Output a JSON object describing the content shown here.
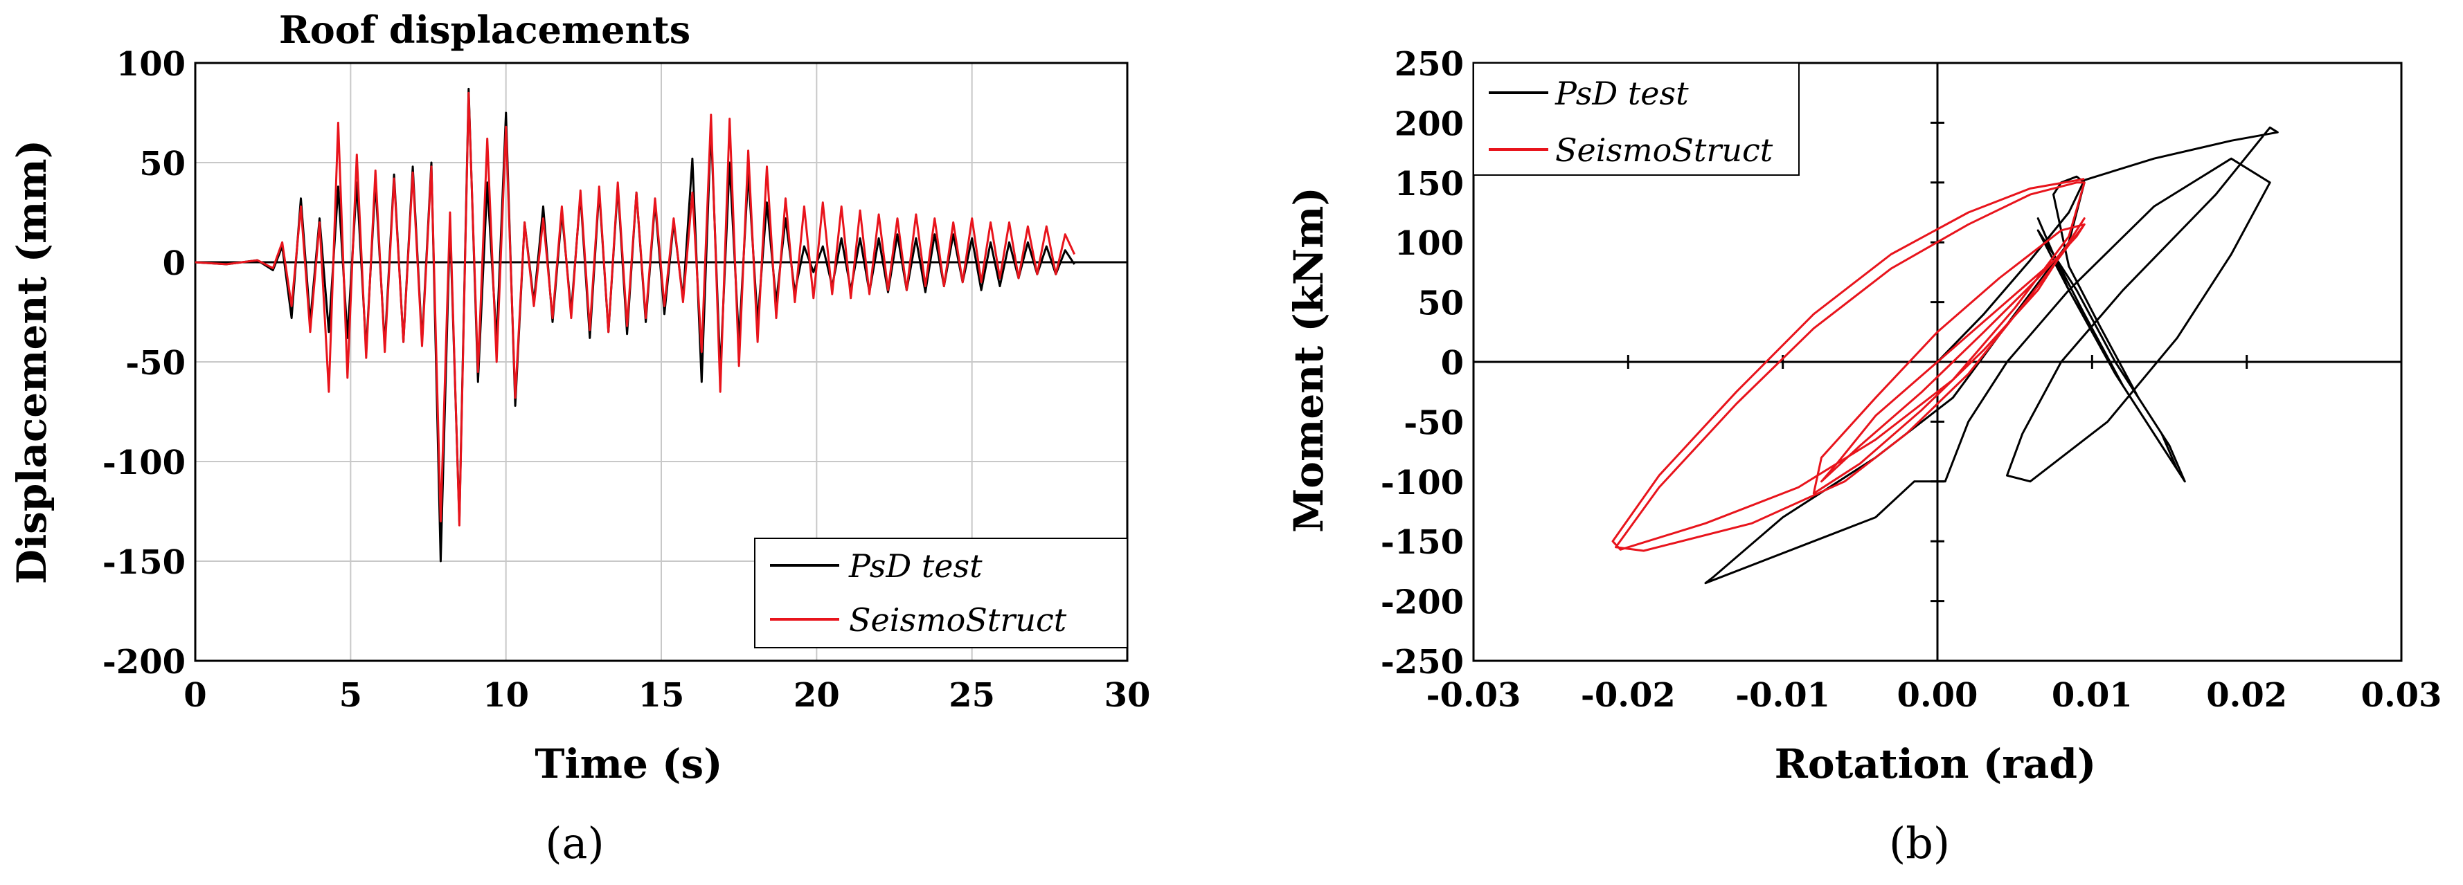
{
  "chart_data": [
    {
      "type": "line",
      "panel_label": "(a)",
      "title": "Roof displacements",
      "xlabel": "Time (s)",
      "ylabel": "Displacement (mm)",
      "xlim": [
        0,
        30
      ],
      "ylim": [
        -200,
        100
      ],
      "x_ticks": [
        "0",
        "5",
        "10",
        "15",
        "20",
        "25",
        "30"
      ],
      "y_ticks": [
        "100",
        "50",
        "0",
        "-50",
        "-100",
        "-150",
        "-200"
      ],
      "grid": true,
      "legend_position": "bottom-right",
      "colors": {
        "PsD test": "#000000",
        "SeismoStruct": "#e8141c"
      },
      "series": [
        {
          "name": "PsD test",
          "x": [
            0,
            1,
            2,
            2.5,
            2.8,
            3.1,
            3.4,
            3.7,
            4.0,
            4.3,
            4.6,
            4.9,
            5.2,
            5.5,
            5.8,
            6.1,
            6.4,
            6.7,
            7.0,
            7.3,
            7.6,
            7.9,
            8.2,
            8.5,
            8.8,
            9.1,
            9.4,
            9.7,
            10.0,
            10.3,
            10.6,
            10.9,
            11.2,
            11.5,
            11.8,
            12.1,
            12.4,
            12.7,
            13.0,
            13.3,
            13.6,
            13.9,
            14.2,
            14.5,
            14.8,
            15.1,
            15.4,
            15.7,
            16.0,
            16.3,
            16.6,
            16.9,
            17.2,
            17.5,
            17.8,
            18.1,
            18.4,
            18.7,
            19.0,
            19.3,
            19.6,
            19.9,
            20.2,
            20.5,
            20.8,
            21.1,
            21.4,
            21.7,
            22.0,
            22.3,
            22.6,
            22.9,
            23.2,
            23.5,
            23.8,
            24.1,
            24.4,
            24.7,
            25.0,
            25.3,
            25.6,
            25.9,
            26.2,
            26.5,
            26.8,
            27.1,
            27.4,
            27.7,
            28.0,
            28.3
          ],
          "values": [
            0,
            -1,
            1,
            -4,
            8,
            -28,
            32,
            -30,
            22,
            -35,
            38,
            -38,
            40,
            -44,
            40,
            -42,
            44,
            -40,
            48,
            -40,
            50,
            -150,
            20,
            -130,
            87,
            -60,
            40,
            -40,
            75,
            -72,
            20,
            -20,
            28,
            -30,
            25,
            -25,
            34,
            -38,
            36,
            -35,
            38,
            -36,
            35,
            -30,
            30,
            -26,
            20,
            -18,
            52,
            -60,
            68,
            -55,
            50,
            -40,
            45,
            -30,
            30,
            -20,
            22,
            -15,
            8,
            -5,
            8,
            -12,
            12,
            -14,
            12,
            -15,
            12,
            -15,
            14,
            -14,
            12,
            -15,
            14,
            -12,
            14,
            -10,
            12,
            -14,
            10,
            -12,
            10,
            -8,
            10,
            -6,
            8,
            -6,
            6,
            -1
          ]
        },
        {
          "name": "SeismoStruct",
          "x": [
            0,
            1,
            2,
            2.5,
            2.8,
            3.1,
            3.4,
            3.7,
            4.0,
            4.3,
            4.6,
            4.9,
            5.2,
            5.5,
            5.8,
            6.1,
            6.4,
            6.7,
            7.0,
            7.3,
            7.6,
            7.9,
            8.2,
            8.5,
            8.8,
            9.1,
            9.4,
            9.7,
            10.0,
            10.3,
            10.6,
            10.9,
            11.2,
            11.5,
            11.8,
            12.1,
            12.4,
            12.7,
            13.0,
            13.3,
            13.6,
            13.9,
            14.2,
            14.5,
            14.8,
            15.1,
            15.4,
            15.7,
            16.0,
            16.3,
            16.6,
            16.9,
            17.2,
            17.5,
            17.8,
            18.1,
            18.4,
            18.7,
            19.0,
            19.3,
            19.6,
            19.9,
            20.2,
            20.5,
            20.8,
            21.1,
            21.4,
            21.7,
            22.0,
            22.3,
            22.6,
            22.9,
            23.2,
            23.5,
            23.8,
            24.1,
            24.4,
            24.7,
            25.0,
            25.3,
            25.6,
            25.9,
            26.2,
            26.5,
            26.8,
            27.1,
            27.4,
            27.7,
            28.0,
            28.3
          ],
          "values": [
            0,
            -1,
            1,
            -3,
            10,
            -22,
            28,
            -35,
            20,
            -65,
            70,
            -58,
            54,
            -48,
            46,
            -45,
            42,
            -40,
            45,
            -42,
            48,
            -130,
            25,
            -132,
            85,
            -55,
            62,
            -50,
            68,
            -68,
            20,
            -22,
            22,
            -28,
            28,
            -28,
            36,
            -34,
            38,
            -35,
            40,
            -32,
            35,
            -28,
            32,
            -22,
            22,
            -20,
            35,
            -45,
            74,
            -65,
            72,
            -52,
            56,
            -40,
            48,
            -28,
            32,
            -20,
            28,
            -18,
            30,
            -16,
            28,
            -18,
            26,
            -16,
            24,
            -14,
            22,
            -14,
            24,
            -12,
            22,
            -12,
            20,
            -10,
            22,
            -10,
            20,
            -8,
            20,
            -8,
            18,
            -6,
            18,
            -6,
            14,
            4
          ]
        }
      ]
    },
    {
      "type": "line",
      "panel_label": "(b)",
      "title": "",
      "xlabel": "Rotation (rad)",
      "ylabel": "Moment (kNm)",
      "xlim": [
        -0.03,
        0.03
      ],
      "ylim": [
        -250,
        250
      ],
      "x_ticks": [
        "-0.03",
        "-0.02",
        "-0.01",
        "0.00",
        "0.01",
        "0.02",
        "0.03"
      ],
      "y_ticks": [
        "250",
        "200",
        "150",
        "100",
        "50",
        "0",
        "-50",
        "-100",
        "-150",
        "-200",
        "-250"
      ],
      "grid": false,
      "legend_position": "top-left",
      "colors": {
        "PsD test": "#000000",
        "SeismoStruct": "#e8141c"
      },
      "series": [
        {
          "name": "PsD test",
          "x": [
            0,
            0.003,
            0.006,
            0.0085,
            0.0095,
            0.014,
            0.019,
            0.022,
            0.0215,
            0.018,
            0.012,
            0.008,
            0.0055,
            0.0045,
            0.006,
            0.011,
            0.0155,
            0.019,
            0.0215,
            0.019,
            0.014,
            0.0085,
            0.0045,
            0.002,
            0.0005,
            -0.0015,
            -0.004,
            -0.009,
            -0.015,
            -0.0145,
            -0.01,
            -0.004,
            0.001,
            0.005,
            0.0085,
            0.0095,
            0.009,
            0.008,
            0.0075,
            0.0085,
            0.0105,
            0.013,
            0.015,
            0.016,
            0.015,
            0.012,
            0.0095,
            0.0075,
            0.0065,
            0.0085,
            0.012,
            0.0145,
            0.0155,
            0.0145,
            0.0115,
            0.009,
            0.007,
            0.0065,
            0.0085,
            0.0115,
            0.0145
          ],
          "values": [
            0,
            40,
            85,
            125,
            152,
            170,
            185,
            192,
            196,
            140,
            60,
            0,
            -60,
            -95,
            -100,
            -50,
            20,
            90,
            150,
            170,
            130,
            60,
            0,
            -50,
            -100,
            -100,
            -130,
            -155,
            -185,
            -180,
            -130,
            -80,
            -30,
            40,
            100,
            150,
            155,
            150,
            140,
            80,
            30,
            -30,
            -70,
            -100,
            -80,
            -20,
            40,
            90,
            120,
            60,
            -20,
            -70,
            -90,
            -60,
            0,
            60,
            100,
            110,
            60,
            -10,
            -70
          ]
        },
        {
          "name": "SeismoStruct",
          "x": [
            0.0095,
            0.006,
            0.002,
            -0.003,
            -0.008,
            -0.013,
            -0.018,
            -0.021,
            -0.0205,
            -0.015,
            -0.009,
            -0.004,
            0.001,
            0.005,
            0.0085,
            0.0095,
            0.009,
            0.006,
            0.002,
            -0.003,
            -0.008,
            -0.013,
            -0.018,
            -0.0208,
            -0.019,
            -0.012,
            -0.006,
            -0.002,
            0.002,
            0.006,
            0.0095,
            0.008,
            0.004,
            0.0,
            -0.004,
            -0.0075,
            -0.008,
            -0.005,
            -0.001,
            0.003,
            0.0065,
            0.0085,
            0.0095,
            0.008,
            0.004,
            0.0,
            -0.004,
            -0.0065,
            -0.0075,
            -0.005,
            -0.001,
            0.003,
            0.0065,
            0.009,
            0.0095
          ],
          "values": [
            153,
            145,
            125,
            90,
            40,
            -25,
            -95,
            -150,
            -157,
            -135,
            -105,
            -65,
            -15,
            45,
            105,
            150,
            150,
            140,
            115,
            78,
            28,
            -35,
            -105,
            -155,
            -158,
            -135,
            -100,
            -60,
            -10,
            55,
            115,
            110,
            70,
            25,
            -30,
            -80,
            -110,
            -85,
            -40,
            10,
            60,
            100,
            120,
            90,
            45,
            0,
            -45,
            -85,
            -100,
            -70,
            -25,
            25,
            70,
            105,
            115
          ]
        }
      ]
    }
  ]
}
